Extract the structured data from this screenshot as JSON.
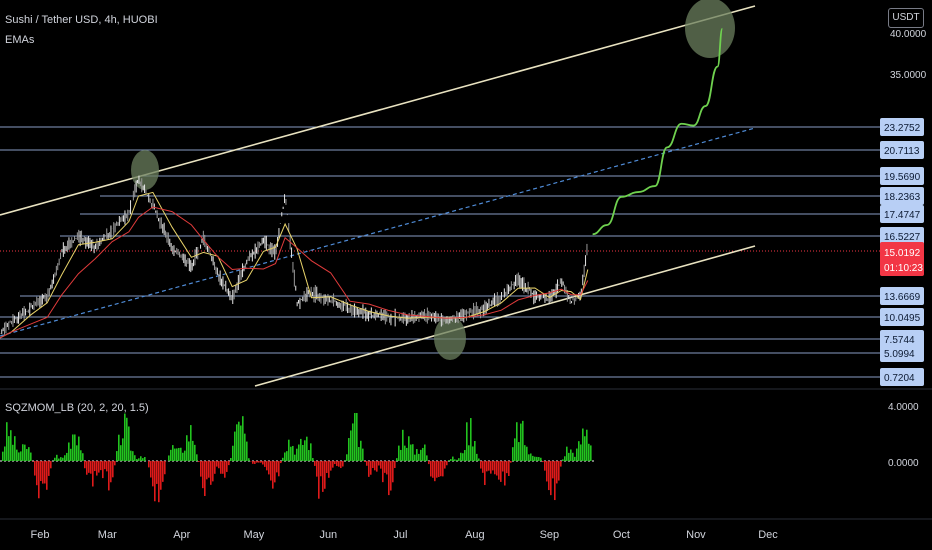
{
  "header": {
    "symbol_title": "Sushi / Tether USD, 4h, HUOBI",
    "indicator": "EMAs",
    "currency": "USDT"
  },
  "oscillator": {
    "label": "SQZMOM_LB (20, 2, 20, 1.5)",
    "axis_labels": [
      "4.0000",
      "0.0000"
    ]
  },
  "colors": {
    "background": "#000000",
    "channel_line": "#e8e2c0",
    "dashed_line": "#4f8bd6",
    "grid_level_line": "#9fb8e6",
    "price_label_bg": "#b8cff5",
    "current_price_bg": "#f23645",
    "ema_fast": "#e8d36a",
    "ema_slow": "#e03b3b",
    "projection": "#6fd14f",
    "highlight_circle": "#6b7f5e",
    "mom_up": "#22c31f",
    "mom_down": "#e01a1a"
  },
  "chart_data": {
    "type": "line",
    "x_axis": [
      "Feb",
      "Mar",
      "Apr",
      "May",
      "Jun",
      "Jul",
      "Aug",
      "Sep",
      "Oct",
      "Nov",
      "Dec"
    ],
    "price_axis_top": [
      "40.0000",
      "35.0000"
    ],
    "levels": [
      {
        "label": "23.2752",
        "value": 23.2752
      },
      {
        "label": "20.7113",
        "value": 20.7113
      },
      {
        "label": "19.5690",
        "value": 19.569
      },
      {
        "label": "18.2363",
        "value": 18.2363
      },
      {
        "label": "17.4747",
        "value": 17.4747
      },
      {
        "label": "16.5227",
        "value": 16.5227
      },
      {
        "label": "13.6669",
        "value": 13.6669
      },
      {
        "label": "10.0495",
        "value": 10.0495
      },
      {
        "label": "7.5744",
        "value": 7.5744
      },
      {
        "label": "5.0994",
        "value": 5.0994
      },
      {
        "label": "0.7204",
        "value": 0.7204
      }
    ],
    "current_price": {
      "label": "15.0192",
      "countdown": "01:10:23"
    },
    "series": [
      {
        "kind": "price",
        "points": [
          [
            "2021-01-12",
            7.0
          ],
          [
            "2021-01-20",
            9.5
          ],
          [
            "2021-01-28",
            11.5
          ],
          [
            "2021-02-04",
            13.5
          ],
          [
            "2021-02-10",
            15.5
          ],
          [
            "2021-02-17",
            16.5
          ],
          [
            "2021-02-24",
            15.8
          ],
          [
            "2021-03-03",
            16.8
          ],
          [
            "2021-03-10",
            17.5
          ],
          [
            "2021-03-14",
            19.4
          ],
          [
            "2021-03-20",
            17.8
          ],
          [
            "2021-03-28",
            15.8
          ],
          [
            "2021-04-05",
            14.8
          ],
          [
            "2021-04-10",
            16.4
          ],
          [
            "2021-04-16",
            14.5
          ],
          [
            "2021-04-22",
            13.2
          ],
          [
            "2021-04-28",
            15.0
          ],
          [
            "2021-05-05",
            16.2
          ],
          [
            "2021-05-10",
            15.5
          ],
          [
            "2021-05-14",
            18.3
          ],
          [
            "2021-05-19",
            12.5
          ],
          [
            "2021-05-25",
            13.8
          ],
          [
            "2021-06-02",
            12.8
          ],
          [
            "2021-06-10",
            11.5
          ],
          [
            "2021-06-18",
            10.5
          ],
          [
            "2021-06-26",
            10.0
          ],
          [
            "2021-07-04",
            9.8
          ],
          [
            "2021-07-12",
            10.4
          ],
          [
            "2021-07-20",
            9.6
          ],
          [
            "2021-07-28",
            10.5
          ],
          [
            "2021-08-05",
            11.5
          ],
          [
            "2021-08-12",
            13.5
          ],
          [
            "2021-08-19",
            14.3
          ],
          [
            "2021-08-26",
            13.6
          ],
          [
            "2021-09-01",
            13.2
          ],
          [
            "2021-09-06",
            14.2
          ],
          [
            "2021-09-10",
            12.8
          ],
          [
            "2021-09-14",
            13.4
          ],
          [
            "2021-09-17",
            16.2
          ]
        ]
      },
      {
        "kind": "projection",
        "points": [
          [
            "2021-09-19",
            16.6
          ],
          [
            "2021-09-25",
            17.0
          ],
          [
            "2021-10-01",
            18.2
          ],
          [
            "2021-10-08",
            18.5
          ],
          [
            "2021-10-15",
            18.9
          ],
          [
            "2021-10-20",
            21.0
          ],
          [
            "2021-10-26",
            24.0
          ],
          [
            "2021-10-31",
            23.6
          ],
          [
            "2021-11-05",
            28.0
          ],
          [
            "2021-11-10",
            36.0
          ],
          [
            "2021-11-12",
            40.5
          ]
        ]
      }
    ]
  }
}
